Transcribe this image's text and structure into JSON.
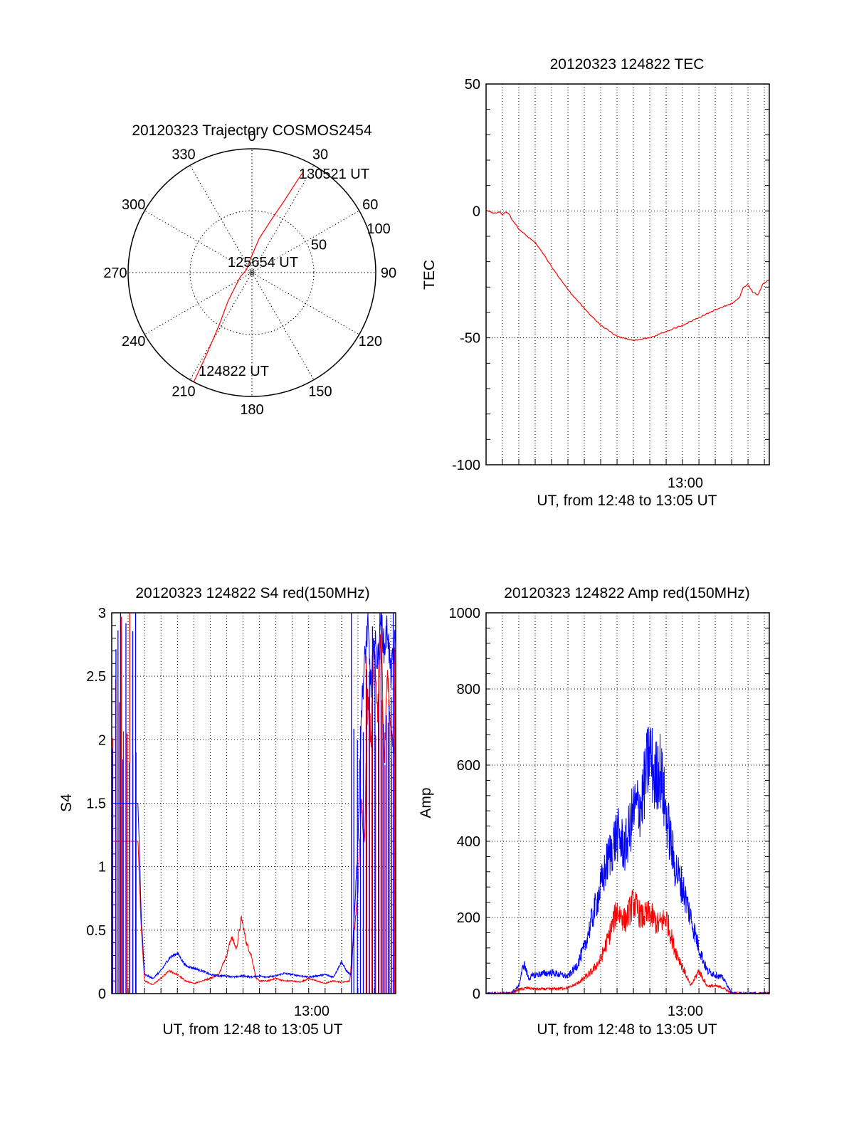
{
  "colors": {
    "red": "#ff0000",
    "blue": "#0000ff",
    "axis": "#000000",
    "grid": "#000000"
  },
  "chart_data": [
    {
      "id": "trajectory",
      "type": "polar",
      "title": "20120323 Trajectory COSMOS2454",
      "azimuth_labels": [
        "0",
        "30",
        "60",
        "90",
        "120",
        "150",
        "180",
        "210",
        "240",
        "270",
        "300",
        "330"
      ],
      "azimuth_values": [
        0,
        30,
        60,
        90,
        120,
        150,
        180,
        210,
        240,
        270,
        300,
        330
      ],
      "radial_labels": [
        "50",
        "100"
      ],
      "radial_values": [
        50,
        100
      ],
      "radial_max": 100,
      "track": {
        "points": [
          [
            208,
            100
          ],
          [
            209,
            75
          ],
          [
            212,
            50
          ],
          [
            220,
            30
          ],
          [
            250,
            10
          ],
          [
            300,
            5
          ],
          [
            350,
            10
          ],
          [
            12,
            28
          ],
          [
            20,
            45
          ],
          [
            24,
            62
          ],
          [
            26,
            80
          ],
          [
            27,
            92
          ]
        ],
        "start_label": "124822 UT",
        "mid_label": "125654 UT",
        "end_label": "130521 UT"
      }
    },
    {
      "id": "tec",
      "type": "line",
      "title": "20120323 124822 TEC",
      "xlabel": "UT, from 12:48 to 13:05 UT",
      "ylabel": "TEC",
      "ylim": [
        -100,
        50
      ],
      "xlim": [
        0,
        17.3
      ],
      "yticks": [
        "50",
        "0",
        "-50",
        "-100"
      ],
      "ytick_values": [
        50,
        0,
        -50,
        -100
      ],
      "xtick_label": "13:00",
      "xtick_value": 12,
      "series": [
        {
          "name": "TEC",
          "color": "red",
          "x": [
            0,
            0.3,
            0.6,
            0.8,
            1.0,
            1.1,
            1.2,
            1.4,
            1.6,
            2.0,
            2.5,
            3.0,
            3.5,
            4.0,
            5.0,
            6.0,
            7.0,
            8.0,
            9.0,
            10.0,
            11.0,
            12.0,
            13.0,
            14.0,
            15.0,
            15.5,
            15.7,
            16.0,
            16.3,
            16.6,
            16.9,
            17.1,
            17.3
          ],
          "y": [
            0,
            -0.5,
            -1,
            -0.3,
            -1.5,
            -0.8,
            -0.4,
            -1.2,
            -3.5,
            -7,
            -10,
            -12.5,
            -17,
            -22,
            -31,
            -38.5,
            -45,
            -49.5,
            -51,
            -50,
            -47.5,
            -45,
            -42,
            -39,
            -36.5,
            -34,
            -30,
            -29,
            -32,
            -33,
            -29,
            -28,
            -27
          ]
        }
      ]
    },
    {
      "id": "s4",
      "type": "line",
      "title": "20120323 124822 S4 red(150MHz)",
      "xlabel": "UT, from 12:48 to 13:05 UT",
      "ylabel": "S4",
      "ylim": [
        0,
        3
      ],
      "xlim": [
        0,
        17.3
      ],
      "yticks": [
        "3",
        "2.5",
        "2",
        "1.5",
        "1",
        "0.5",
        "0"
      ],
      "ytick_values": [
        3,
        2.5,
        2,
        1.5,
        1,
        0.5,
        0
      ],
      "xtick_label": "13:00",
      "xtick_value": 12,
      "series": [
        {
          "name": "S4 red",
          "color": "red",
          "x": [
            1.6,
            1.8,
            2.0,
            2.5,
            3.0,
            3.5,
            4.0,
            4.5,
            5.0,
            5.5,
            6.0,
            6.5,
            7.0,
            7.3,
            7.6,
            7.9,
            8.2,
            8.5,
            8.8,
            9.0,
            9.5,
            10.0,
            10.5,
            11.0,
            11.5,
            12.0,
            12.5,
            13.0,
            13.5,
            14.0,
            14.5,
            15.0,
            15.2,
            15.4,
            15.6,
            15.8,
            16.0,
            16.2,
            16.4,
            16.6,
            16.8,
            17.0,
            17.3
          ],
          "y": [
            1.2,
            0.5,
            0.1,
            0.07,
            0.12,
            0.18,
            0.15,
            0.1,
            0.08,
            0.1,
            0.12,
            0.15,
            0.3,
            0.45,
            0.35,
            0.6,
            0.4,
            0.3,
            0.12,
            0.1,
            0.1,
            0.12,
            0.1,
            0.1,
            0.09,
            0.12,
            0.1,
            0.08,
            0.1,
            0.09,
            0.1,
            0.8,
            1.5,
            1.2,
            2.4,
            2.0,
            2.8,
            2.2,
            2.9,
            1.8,
            2.5,
            2.1,
            1.9
          ]
        },
        {
          "name": "S4 blue",
          "color": "blue",
          "x": [
            1.6,
            1.8,
            2.0,
            2.5,
            3.0,
            3.5,
            4.0,
            4.5,
            5.0,
            5.5,
            6.0,
            6.5,
            7.0,
            7.5,
            8.0,
            8.5,
            9.0,
            9.5,
            10.0,
            10.5,
            11.0,
            11.5,
            12.0,
            12.5,
            13.0,
            13.5,
            14.0,
            14.3,
            14.6,
            15.0,
            15.2,
            15.4,
            15.6,
            15.8,
            16.0,
            16.2,
            16.4,
            16.6,
            16.8,
            17.0,
            17.3
          ],
          "y": [
            1.5,
            0.6,
            0.15,
            0.12,
            0.18,
            0.28,
            0.32,
            0.22,
            0.2,
            0.18,
            0.15,
            0.14,
            0.14,
            0.13,
            0.14,
            0.13,
            0.14,
            0.13,
            0.14,
            0.16,
            0.15,
            0.14,
            0.13,
            0.14,
            0.15,
            0.13,
            0.25,
            0.18,
            0.14,
            1.2,
            2.2,
            2.6,
            2.9,
            2.4,
            2.8,
            2.6,
            3.0,
            2.7,
            2.9,
            2.5,
            2.8
          ]
        }
      ]
    },
    {
      "id": "amp",
      "type": "line",
      "title": "20120323 124822 Amp red(150MHz)",
      "xlabel": "UT, from 12:48 to 13:05 UT",
      "ylabel": "Amp",
      "ylim": [
        0,
        1000
      ],
      "xlim": [
        0,
        17.3
      ],
      "yticks": [
        "1000",
        "800",
        "600",
        "400",
        "200",
        "0"
      ],
      "ytick_values": [
        1000,
        800,
        600,
        400,
        200,
        0
      ],
      "xtick_label": "13:00",
      "xtick_value": 12,
      "series": [
        {
          "name": "Amp red",
          "color": "red",
          "x": [
            0,
            1.5,
            2.0,
            2.5,
            3.0,
            4.0,
            5.0,
            5.5,
            6.0,
            6.5,
            7.0,
            7.5,
            8.0,
            8.5,
            9.0,
            9.5,
            10.0,
            10.5,
            11.0,
            11.5,
            12.0,
            12.5,
            13.0,
            13.5,
            14.0,
            14.5,
            15.0,
            17.3
          ],
          "y": [
            0,
            0,
            10,
            15,
            12,
            12,
            15,
            25,
            40,
            60,
            90,
            150,
            220,
            190,
            240,
            200,
            210,
            180,
            200,
            120,
            70,
            20,
            60,
            20,
            20,
            15,
            0,
            0
          ]
        },
        {
          "name": "Amp blue",
          "color": "blue",
          "x": [
            0,
            1.5,
            2.0,
            2.3,
            2.6,
            3.0,
            4.0,
            5.0,
            5.5,
            6.0,
            6.5,
            7.0,
            7.5,
            8.0,
            8.5,
            9.0,
            9.5,
            10.0,
            10.3,
            10.6,
            11.0,
            11.5,
            12.0,
            12.5,
            13.0,
            13.5,
            14.0,
            14.5,
            15.0,
            17.3
          ],
          "y": [
            0,
            0,
            20,
            80,
            40,
            50,
            55,
            45,
            70,
            120,
            200,
            280,
            360,
            420,
            380,
            480,
            500,
            640,
            560,
            600,
            470,
            340,
            280,
            200,
            120,
            60,
            50,
            40,
            0,
            0
          ]
        }
      ]
    }
  ]
}
